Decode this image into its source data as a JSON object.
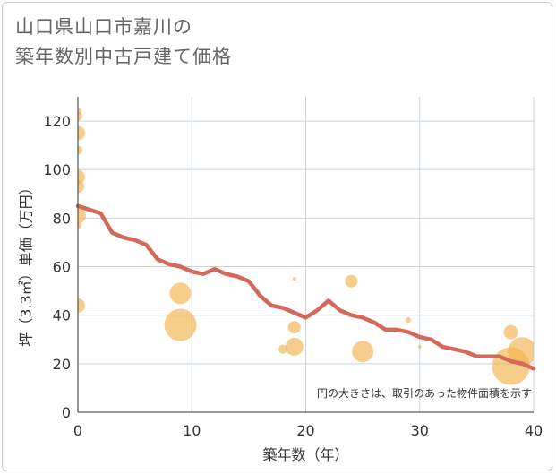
{
  "title": {
    "line1": "山口県山口市嘉川の",
    "line2": "築年数別中古戸建て価格"
  },
  "colors": {
    "bubble": "#f2b24d",
    "line": "#d4685a",
    "grid": "#c8d4df",
    "text": "#333333"
  },
  "chart_data": {
    "type": "scatter",
    "title": "山口県山口市嘉川の築年数別中古戸建て価格",
    "xlabel": "築年数（年）",
    "ylabel": "坪（3.3㎡）単価（万円）",
    "xlim": [
      0,
      40
    ],
    "ylim": [
      0,
      130
    ],
    "x_ticks": [
      "0",
      "10",
      "20",
      "30",
      "40"
    ],
    "y_ticks": [
      "0",
      "20",
      "40",
      "60",
      "80",
      "100",
      "120"
    ],
    "grid": true,
    "note": "円の大きさは、取引のあった物件面積を示す",
    "series": [
      {
        "kind": "bubble",
        "points": [
          {
            "x": 0,
            "y": 124,
            "size": 4
          },
          {
            "x": 0,
            "y": 122,
            "size": 5
          },
          {
            "x": 0,
            "y": 115,
            "size": 8
          },
          {
            "x": 0,
            "y": 108,
            "size": 5
          },
          {
            "x": 0,
            "y": 97,
            "size": 8
          },
          {
            "x": 0,
            "y": 93,
            "size": 7
          },
          {
            "x": 0,
            "y": 81,
            "size": 9
          },
          {
            "x": 0,
            "y": 77,
            "size": 4
          },
          {
            "x": 0,
            "y": 44,
            "size": 8
          },
          {
            "x": 9,
            "y": 49,
            "size": 12
          },
          {
            "x": 9,
            "y": 36,
            "size": 18
          },
          {
            "x": 19,
            "y": 55,
            "size": 2
          },
          {
            "x": 19,
            "y": 35,
            "size": 7
          },
          {
            "x": 18,
            "y": 26,
            "size": 5
          },
          {
            "x": 19,
            "y": 27,
            "size": 10
          },
          {
            "x": 24,
            "y": 54,
            "size": 7
          },
          {
            "x": 25,
            "y": 25,
            "size": 12
          },
          {
            "x": 29,
            "y": 38,
            "size": 3
          },
          {
            "x": 30,
            "y": 27,
            "size": 2
          },
          {
            "x": 38,
            "y": 33,
            "size": 8
          },
          {
            "x": 39,
            "y": 25,
            "size": 16
          },
          {
            "x": 38,
            "y": 19,
            "size": 21
          }
        ]
      },
      {
        "kind": "line",
        "points": [
          {
            "x": 0,
            "y": 85
          },
          {
            "x": 2,
            "y": 82
          },
          {
            "x": 3,
            "y": 74
          },
          {
            "x": 4,
            "y": 72
          },
          {
            "x": 5,
            "y": 71
          },
          {
            "x": 6,
            "y": 69
          },
          {
            "x": 7,
            "y": 63
          },
          {
            "x": 8,
            "y": 61
          },
          {
            "x": 9,
            "y": 60
          },
          {
            "x": 10,
            "y": 58
          },
          {
            "x": 11,
            "y": 57
          },
          {
            "x": 12,
            "y": 59
          },
          {
            "x": 13,
            "y": 57
          },
          {
            "x": 14,
            "y": 56
          },
          {
            "x": 15,
            "y": 54
          },
          {
            "x": 16,
            "y": 48
          },
          {
            "x": 17,
            "y": 44
          },
          {
            "x": 18,
            "y": 43
          },
          {
            "x": 19,
            "y": 41
          },
          {
            "x": 20,
            "y": 39
          },
          {
            "x": 21,
            "y": 42
          },
          {
            "x": 22,
            "y": 46
          },
          {
            "x": 23,
            "y": 42
          },
          {
            "x": 24,
            "y": 40
          },
          {
            "x": 25,
            "y": 39
          },
          {
            "x": 26,
            "y": 37
          },
          {
            "x": 27,
            "y": 34
          },
          {
            "x": 28,
            "y": 34
          },
          {
            "x": 29,
            "y": 33
          },
          {
            "x": 30,
            "y": 31
          },
          {
            "x": 31,
            "y": 30
          },
          {
            "x": 32,
            "y": 27
          },
          {
            "x": 33,
            "y": 26
          },
          {
            "x": 34,
            "y": 25
          },
          {
            "x": 35,
            "y": 23
          },
          {
            "x": 36,
            "y": 23
          },
          {
            "x": 37,
            "y": 23
          },
          {
            "x": 38,
            "y": 21
          },
          {
            "x": 39,
            "y": 20
          },
          {
            "x": 40,
            "y": 18
          }
        ]
      }
    ]
  }
}
